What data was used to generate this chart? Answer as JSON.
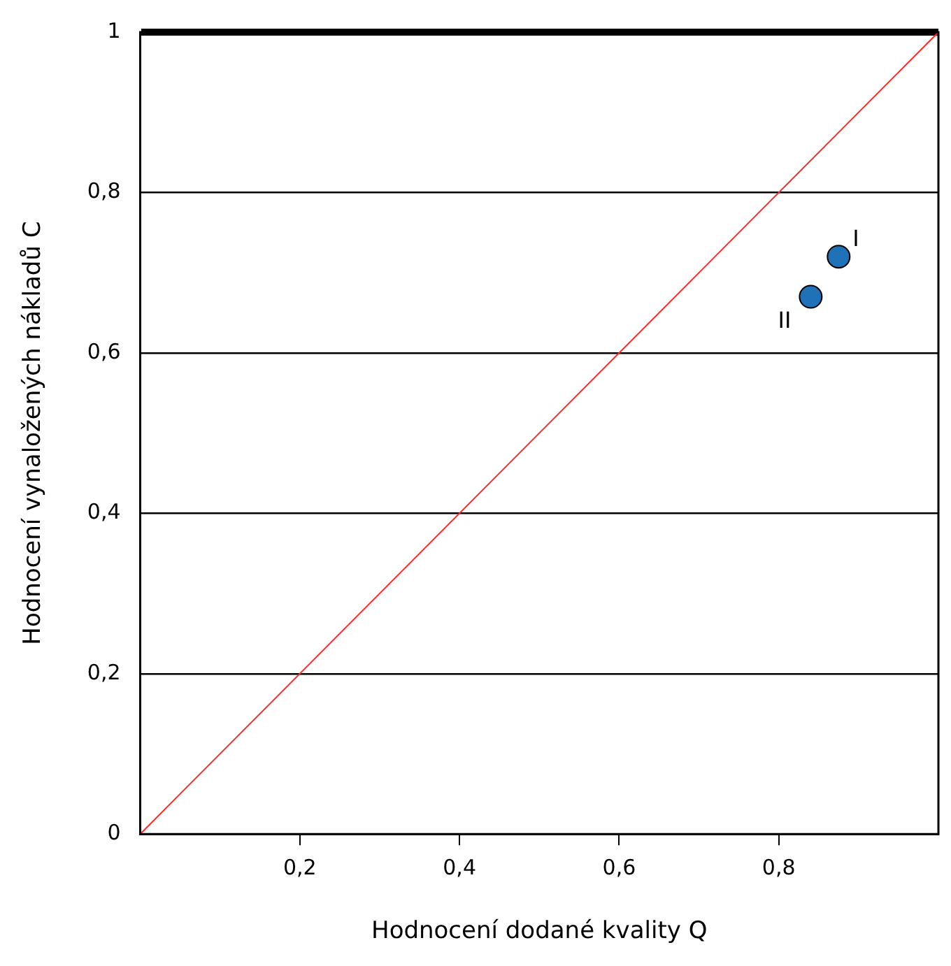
{
  "chart_data": {
    "type": "scatter",
    "xlabel": "Hodnocení dodané kvality Q",
    "ylabel": "Hodnocení vynaložených nákladů C",
    "series": [
      {
        "type": "line",
        "color": "#ff2a2a",
        "x": [
          0,
          1
        ],
        "values": [
          0,
          1
        ],
        "marker": "none"
      },
      {
        "color": "#1f72b8",
        "x": [
          0.875,
          0.84
        ],
        "values": [
          0.72,
          0.67
        ],
        "marker": "circle"
      }
    ],
    "xlim": [
      0,
      1
    ],
    "ylim": [
      0,
      1
    ],
    "xticks": [
      {
        "value": 0.2,
        "label": "0,2"
      },
      {
        "value": 0.4,
        "label": "0,4"
      },
      {
        "value": 0.6,
        "label": "0,6"
      },
      {
        "value": 0.8,
        "label": "0,8"
      }
    ],
    "yticks": [
      0,
      {
        "value": 0.2,
        "label": "0,2"
      },
      {
        "value": 0.4,
        "label": "0,4"
      },
      {
        "value": 0.6,
        "label": "0,6"
      },
      {
        "value": 0.8,
        "label": "0,8"
      },
      1
    ],
    "grid": "y",
    "annotations": [
      {
        "text": "I",
        "x": 0.875,
        "y": 0.72
      },
      {
        "text": "II",
        "x": 0.84,
        "y": 0.67
      }
    ]
  }
}
